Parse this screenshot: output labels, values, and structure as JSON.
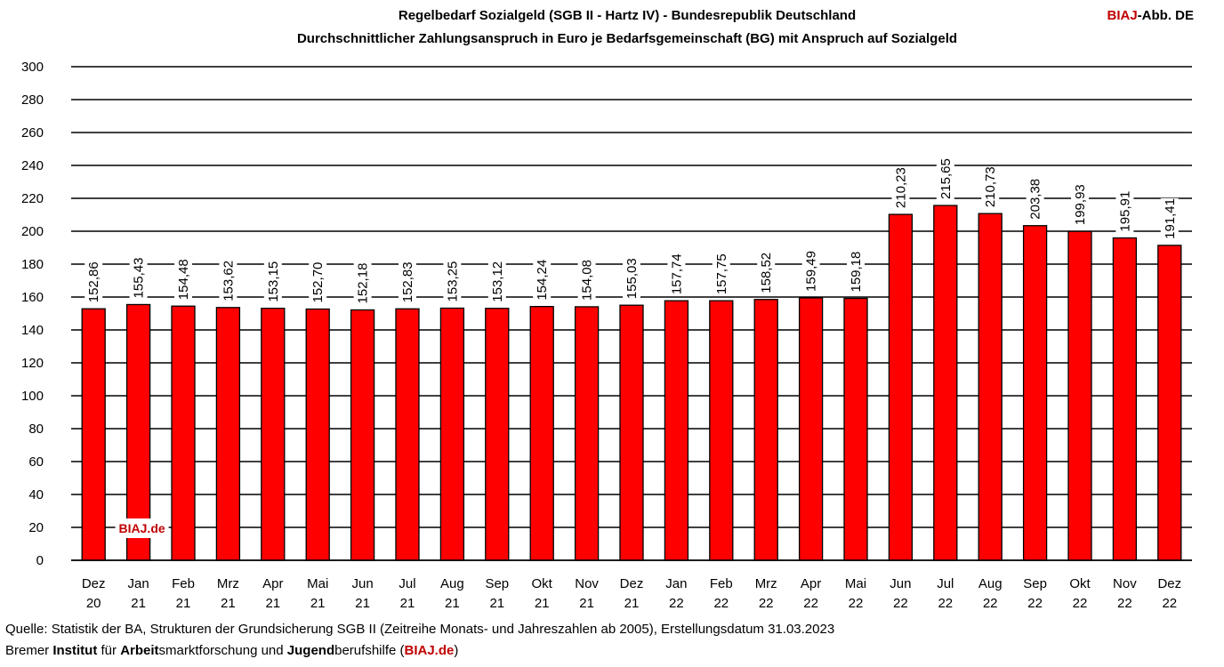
{
  "header": {
    "title": "Regelbedarf Sozialgeld (SGB II - Hartz IV) - Bundesrepublik Deutschland",
    "subtitle": "Durchschnittlicher Zahlungsanspruch in Euro je Bedarfsgemeinschaft (BG) mit Anspruch auf Sozialgeld",
    "brand_red": "BIAJ",
    "brand_rest": "-Abb. DE"
  },
  "watermark": "BIAJ.de",
  "footer": {
    "source": "Quelle: Statistik der BA, Strukturen der Grundsicherung SGB II (Zeitreihe Monats- und Jahreszahlen ab 2005), Erstellungsdatum 31.03.2023",
    "line2": [
      {
        "text": "Bremer ",
        "style": ""
      },
      {
        "text": "Institut",
        "style": "b"
      },
      {
        "text": " für ",
        "style": ""
      },
      {
        "text": "Arbeit",
        "style": "b"
      },
      {
        "text": "smarktforschung und ",
        "style": ""
      },
      {
        "text": "Jugend",
        "style": "b"
      },
      {
        "text": "berufshilfe (",
        "style": ""
      },
      {
        "text": "BIAJ.de",
        "style": "redb"
      },
      {
        "text": ")",
        "style": ""
      }
    ]
  },
  "chart_data": {
    "type": "bar",
    "categories": [
      [
        "Dez",
        "20"
      ],
      [
        "Jan",
        "21"
      ],
      [
        "Feb",
        "21"
      ],
      [
        "Mrz",
        "21"
      ],
      [
        "Apr",
        "21"
      ],
      [
        "Mai",
        "21"
      ],
      [
        "Jun",
        "21"
      ],
      [
        "Jul",
        "21"
      ],
      [
        "Aug",
        "21"
      ],
      [
        "Sep",
        "21"
      ],
      [
        "Okt",
        "21"
      ],
      [
        "Nov",
        "21"
      ],
      [
        "Dez",
        "21"
      ],
      [
        "Jan",
        "22"
      ],
      [
        "Feb",
        "22"
      ],
      [
        "Mrz",
        "22"
      ],
      [
        "Apr",
        "22"
      ],
      [
        "Mai",
        "22"
      ],
      [
        "Jun",
        "22"
      ],
      [
        "Jul",
        "22"
      ],
      [
        "Aug",
        "22"
      ],
      [
        "Sep",
        "22"
      ],
      [
        "Okt",
        "22"
      ],
      [
        "Nov",
        "22"
      ],
      [
        "Dez",
        "22"
      ]
    ],
    "values": [
      152.86,
      155.43,
      154.48,
      153.62,
      153.15,
      152.7,
      152.18,
      152.83,
      153.25,
      153.12,
      154.24,
      154.08,
      155.03,
      157.74,
      157.75,
      158.52,
      159.49,
      159.18,
      210.23,
      215.65,
      210.73,
      203.38,
      199.93,
      195.91,
      191.41
    ],
    "data_labels": [
      "152,86",
      "155,43",
      "154,48",
      "153,62",
      "153,15",
      "152,70",
      "152,18",
      "152,83",
      "153,25",
      "153,12",
      "154,24",
      "154,08",
      "155,03",
      "157,74",
      "157,75",
      "158,52",
      "159,49",
      "159,18",
      "210,23",
      "215,65",
      "210,73",
      "203,38",
      "199,93",
      "195,91",
      "191,41"
    ],
    "ylim": [
      0,
      300
    ],
    "yticks": [
      0,
      20,
      40,
      60,
      80,
      100,
      120,
      140,
      160,
      180,
      200,
      220,
      240,
      260,
      280,
      300
    ],
    "grid": true,
    "colors": {
      "bar": "#ff0000",
      "bar_border": "#000000",
      "grid": "#000000",
      "accent": "#c00000"
    }
  }
}
